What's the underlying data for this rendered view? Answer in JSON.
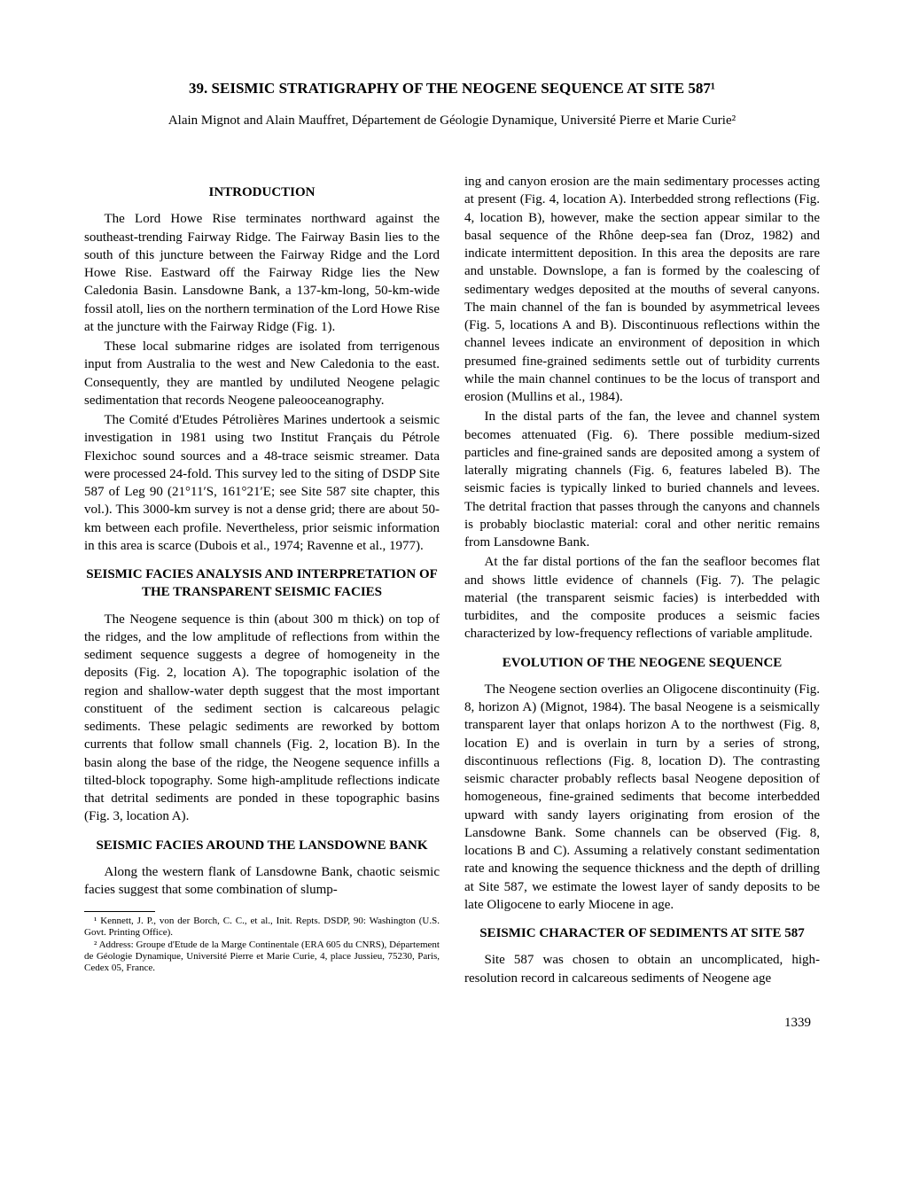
{
  "title": "39. SEISMIC STRATIGRAPHY OF THE NEOGENE SEQUENCE AT SITE 587¹",
  "authors": "Alain Mignot and Alain Mauffret, Département de Géologie Dynamique, Université Pierre et Marie Curie²",
  "sections": {
    "intro_heading": "INTRODUCTION",
    "intro_p1": "The Lord Howe Rise terminates northward against the southeast-trending Fairway Ridge. The Fairway Basin lies to the south of this juncture between the Fairway Ridge and the Lord Howe Rise. Eastward off the Fairway Ridge lies the New Caledonia Basin. Lansdowne Bank, a 137-km-long, 50-km-wide fossil atoll, lies on the northern termination of the Lord Howe Rise at the juncture with the Fairway Ridge (Fig. 1).",
    "intro_p2": "These local submarine ridges are isolated from terrigenous input from Australia to the west and New Caledonia to the east. Consequently, they are mantled by undiluted Neogene pelagic sedimentation that records Neogene paleooceanography.",
    "intro_p3": "The Comité d'Etudes Pétrolières Marines undertook a seismic investigation in 1981 using two Institut Français du Pétrole Flexichoc sound sources and a 48-trace seismic streamer. Data were processed 24-fold. This survey led to the siting of DSDP Site 587 of Leg 90 (21°11′S, 161°21′E; see Site 587 site chapter, this vol.). This 3000-km survey is not a dense grid; there are about 50-km between each profile. Nevertheless, prior seismic information in this area is scarce (Dubois et al., 1974; Ravenne et al., 1977).",
    "facies_heading": "SEISMIC FACIES ANALYSIS AND INTERPRETATION OF THE TRANSPARENT SEISMIC FACIES",
    "facies_p1": "The Neogene sequence is thin (about 300 m thick) on top of the ridges, and the low amplitude of reflections from within the sediment sequence suggests a degree of homogeneity in the deposits (Fig. 2, location A). The topographic isolation of the region and shallow-water depth suggest that the most important constituent of the sediment section is calcareous pelagic sediments. These pelagic sediments are reworked by bottom currents that follow small channels (Fig. 2, location B). In the basin along the base of the ridge, the Neogene sequence infills a tilted-block topography. Some high-amplitude reflections indicate that detrital sediments are ponded in these topographic basins (Fig. 3, location A).",
    "bank_heading": "SEISMIC FACIES AROUND THE LANSDOWNE BANK",
    "bank_p1": "Along the western flank of Lansdowne Bank, chaotic seismic facies suggest that some combination of slump-",
    "bank_p1_cont": "ing and canyon erosion are the main sedimentary processes acting at present (Fig. 4, location A). Interbedded strong reflections (Fig. 4, location B), however, make the section appear similar to the basal sequence of the Rhône deep-sea fan (Droz, 1982) and indicate intermittent deposition. In this area the deposits are rare and unstable. Downslope, a fan is formed by the coalescing of sedimentary wedges deposited at the mouths of several canyons. The main channel of the fan is bounded by asymmetrical levees (Fig. 5, locations A and B). Discontinuous reflections within the channel levees indicate an environment of deposition in which presumed fine-grained sediments settle out of turbidity currents while the main channel continues to be the locus of transport and erosion (Mullins et al., 1984).",
    "bank_p2": "In the distal parts of the fan, the levee and channel system becomes attenuated (Fig. 6). There possible medium-sized particles and fine-grained sands are deposited among a system of laterally migrating channels (Fig. 6, features labeled B). The seismic facies is typically linked to buried channels and levees. The detrital fraction that passes through the canyons and channels is probably bioclastic material: coral and other neritic remains from Lansdowne Bank.",
    "bank_p3": "At the far distal portions of the fan the seafloor becomes flat and shows little evidence of channels (Fig. 7). The pelagic material (the transparent seismic facies) is interbedded with turbidites, and the composite produces a seismic facies characterized by low-frequency reflections of variable amplitude.",
    "evolution_heading": "EVOLUTION OF THE NEOGENE SEQUENCE",
    "evolution_p1": "The Neogene section overlies an Oligocene discontinuity (Fig. 8, horizon A) (Mignot, 1984). The basal Neogene is a seismically transparent layer that onlaps horizon A to the northwest (Fig. 8, location E) and is overlain in turn by a series of strong, discontinuous reflections (Fig. 8, location D). The contrasting seismic character probably reflects basal Neogene deposition of homogeneous, fine-grained sediments that become interbedded upward with sandy layers originating from erosion of the Lansdowne Bank. Some channels can be observed (Fig. 8, locations B and C). Assuming a relatively constant sedimentation rate and knowing the sequence thickness and the depth of drilling at Site 587, we estimate the lowest layer of sandy deposits to be late Oligocene to early Miocene in age.",
    "character_heading": "SEISMIC CHARACTER OF SEDIMENTS AT SITE 587",
    "character_p1": "Site 587 was chosen to obtain an uncomplicated, high-resolution record in calcareous sediments of Neogene age"
  },
  "footnotes": {
    "f1": "¹ Kennett, J. P., von der Borch, C. C., et al., Init. Repts. DSDP, 90: Washington (U.S. Govt. Printing Office).",
    "f2": "² Address: Groupe d'Etude de la Marge Continentale (ERA 605 du CNRS), Département de Géologie Dynamique, Université Pierre et Marie Curie, 4, place Jussieu, 75230, Paris, Cedex 05, France."
  },
  "page_number": "1339"
}
